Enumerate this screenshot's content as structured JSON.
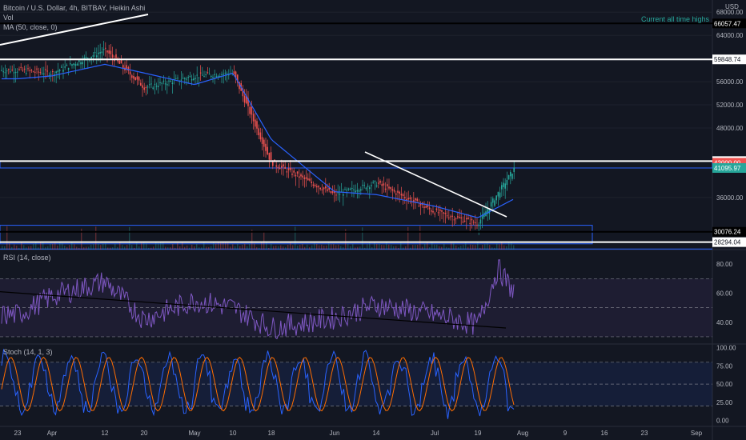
{
  "legend": {
    "title": "Bitcoin / U.S. Dollar, 4h, BITBAY, Heikin Ashi",
    "vol": "Vol",
    "ma": "MA (50, close, 0)",
    "rsi": "RSI (14, close)",
    "stoch": "Stoch (14, 1, 3)"
  },
  "annotation": "Current all time highs",
  "colors": {
    "background": "#131722",
    "up": "#26a69a",
    "down": "#ef5350",
    "ma": "#2962ff",
    "rsi": "#7e57c2",
    "stoch_k": "#2962ff",
    "stoch_d": "#ff6d00",
    "hline": "#ffffff",
    "box": "#2962ff",
    "trendline": "#ffffff"
  },
  "chart_data": [
    {
      "type": "candlestick",
      "title": "Bitcoin / U.S. Dollar, 4h, BITBAY, Heikin Ashi",
      "currency": "USD",
      "x_ticks": [
        "23",
        "Apr",
        "12",
        "20",
        "May",
        "10",
        "18",
        "Jun",
        "14",
        "Jul",
        "19",
        "Aug",
        "9",
        "16",
        "23",
        "Sep"
      ],
      "y_ticks": [
        68000,
        64000,
        60000,
        56000,
        52000,
        48000,
        36000
      ],
      "y_tick_labels": [
        "68000.00",
        "64000.00",
        "60000.00",
        "56000.00",
        "52000.00",
        "48000.00",
        "36000.00"
      ],
      "ylim": [
        27000,
        69000
      ],
      "price_levels": [
        {
          "value": 66057.47,
          "label": "66057.47",
          "style": "black"
        },
        {
          "value": 59848.74,
          "label": "59848.74",
          "style": "white"
        },
        {
          "value": 42288.24,
          "label": "42288.24",
          "style": "white"
        },
        {
          "value": 42000.0,
          "label": "42000.00",
          "style": "red"
        },
        {
          "value": 41095.97,
          "label": "41095.97",
          "style": "green"
        },
        {
          "value": 30076.24,
          "label": "30076.24",
          "style": "black"
        },
        {
          "value": 28294.04,
          "label": "28294.04",
          "style": "white"
        }
      ],
      "series": [
        {
          "name": "Heikin Ashi close",
          "dates": [
            "Mar 23",
            "Apr 1",
            "Apr 12",
            "Apr 20",
            "May 1",
            "May 10",
            "May 18",
            "Jun 1",
            "Jun 14",
            "Jul 1",
            "Jul 19",
            "Jul 28"
          ],
          "values": [
            58000,
            57500,
            61500,
            55000,
            57000,
            57500,
            42000,
            36500,
            38500,
            33500,
            31500,
            41100
          ]
        },
        {
          "name": "MA (50, close, 0)",
          "dates": [
            "Mar 23",
            "Apr 1",
            "Apr 12",
            "Apr 20",
            "May 1",
            "May 10",
            "May 18",
            "Jun 1",
            "Jun 14",
            "Jul 1",
            "Jul 19",
            "Jul 28"
          ],
          "values": [
            56500,
            57000,
            59000,
            57500,
            55500,
            57500,
            46000,
            37000,
            36500,
            34500,
            32500,
            35800
          ]
        }
      ]
    },
    {
      "type": "line",
      "title": "RSI (14, close)",
      "y_ticks": [
        80,
        60,
        40
      ],
      "y_tick_labels": [
        "80.00",
        "60.00",
        "40.00"
      ],
      "ylim": [
        25,
        90
      ],
      "bands": [
        30,
        50,
        70
      ],
      "series": [
        {
          "name": "RSI (14, close)",
          "dates": [
            "Mar 23",
            "Apr 1",
            "Apr 12",
            "Apr 20",
            "May 1",
            "May 10",
            "May 18",
            "Jun 1",
            "Jun 14",
            "Jul 1",
            "Jul 19",
            "Jul 24",
            "Jul 28"
          ],
          "values": [
            45,
            58,
            68,
            42,
            55,
            50,
            36,
            43,
            52,
            45,
            38,
            77,
            60
          ]
        }
      ]
    },
    {
      "type": "line",
      "title": "Stoch (14, 1, 3)",
      "y_ticks": [
        100,
        75,
        50,
        25,
        0
      ],
      "y_tick_labels": [
        "100.00",
        "75.00",
        "50.00",
        "25.00",
        "0.00"
      ],
      "ylim": [
        -8,
        105
      ],
      "bands": [
        20,
        50,
        80
      ],
      "series": [
        {
          "name": "%K",
          "dates": [
            "Mar 23",
            "Apr 1",
            "Apr 12",
            "Apr 20",
            "May 1",
            "May 10",
            "May 18",
            "Jun 1",
            "Jun 14",
            "Jul 1",
            "Jul 19",
            "Jul 28"
          ],
          "values": [
            60,
            90,
            30,
            85,
            20,
            80,
            10,
            70,
            95,
            15,
            90,
            40
          ]
        },
        {
          "name": "%D",
          "dates": [
            "Mar 23",
            "Apr 1",
            "Apr 12",
            "Apr 20",
            "May 1",
            "May 10",
            "May 18",
            "Jun 1",
            "Jun 14",
            "Jul 1",
            "Jul 19",
            "Jul 28"
          ],
          "values": [
            55,
            85,
            35,
            80,
            25,
            75,
            15,
            65,
            90,
            20,
            85,
            50
          ]
        }
      ]
    }
  ]
}
